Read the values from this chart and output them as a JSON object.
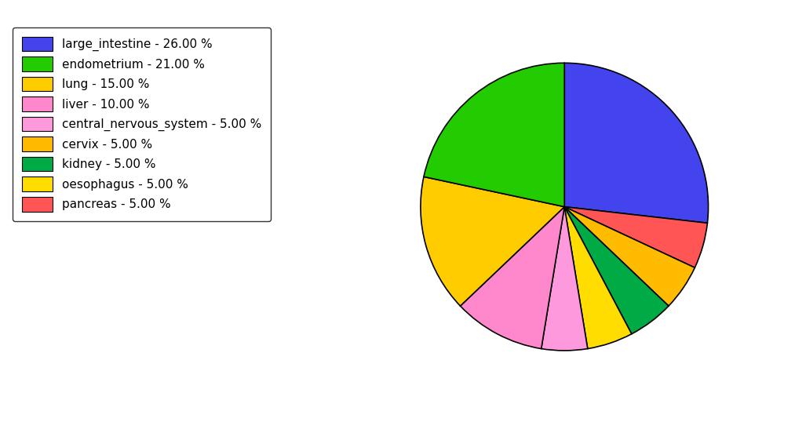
{
  "legend_labels": [
    "large_intestine - 26.00 %",
    "endometrium - 21.00 %",
    "lung - 15.00 %",
    "liver - 10.00 %",
    "central_nervous_system - 5.00 %",
    "cervix - 5.00 %",
    "kidney - 5.00 %",
    "oesophagus - 5.00 %",
    "pancreas - 5.00 %"
  ],
  "legend_colors": [
    "#4444ee",
    "#22cc00",
    "#ffcc00",
    "#ff88cc",
    "#ff99dd",
    "#ffbb00",
    "#00aa44",
    "#ffdd00",
    "#ff5555"
  ],
  "cw_order": [
    "large_intestine",
    "pancreas",
    "cervix",
    "kidney",
    "oesophagus",
    "central_nervous_system",
    "liver",
    "lung",
    "endometrium"
  ],
  "cw_values": [
    26,
    5,
    5,
    5,
    5,
    5,
    10,
    15,
    21
  ],
  "cw_colors": [
    "#4444ee",
    "#ff5555",
    "#ffbb00",
    "#00aa44",
    "#ffdd00",
    "#ff99dd",
    "#ff88cc",
    "#ffcc00",
    "#22cc00"
  ],
  "startangle": 90,
  "figsize": [
    10.13,
    5.38
  ],
  "dpi": 100
}
